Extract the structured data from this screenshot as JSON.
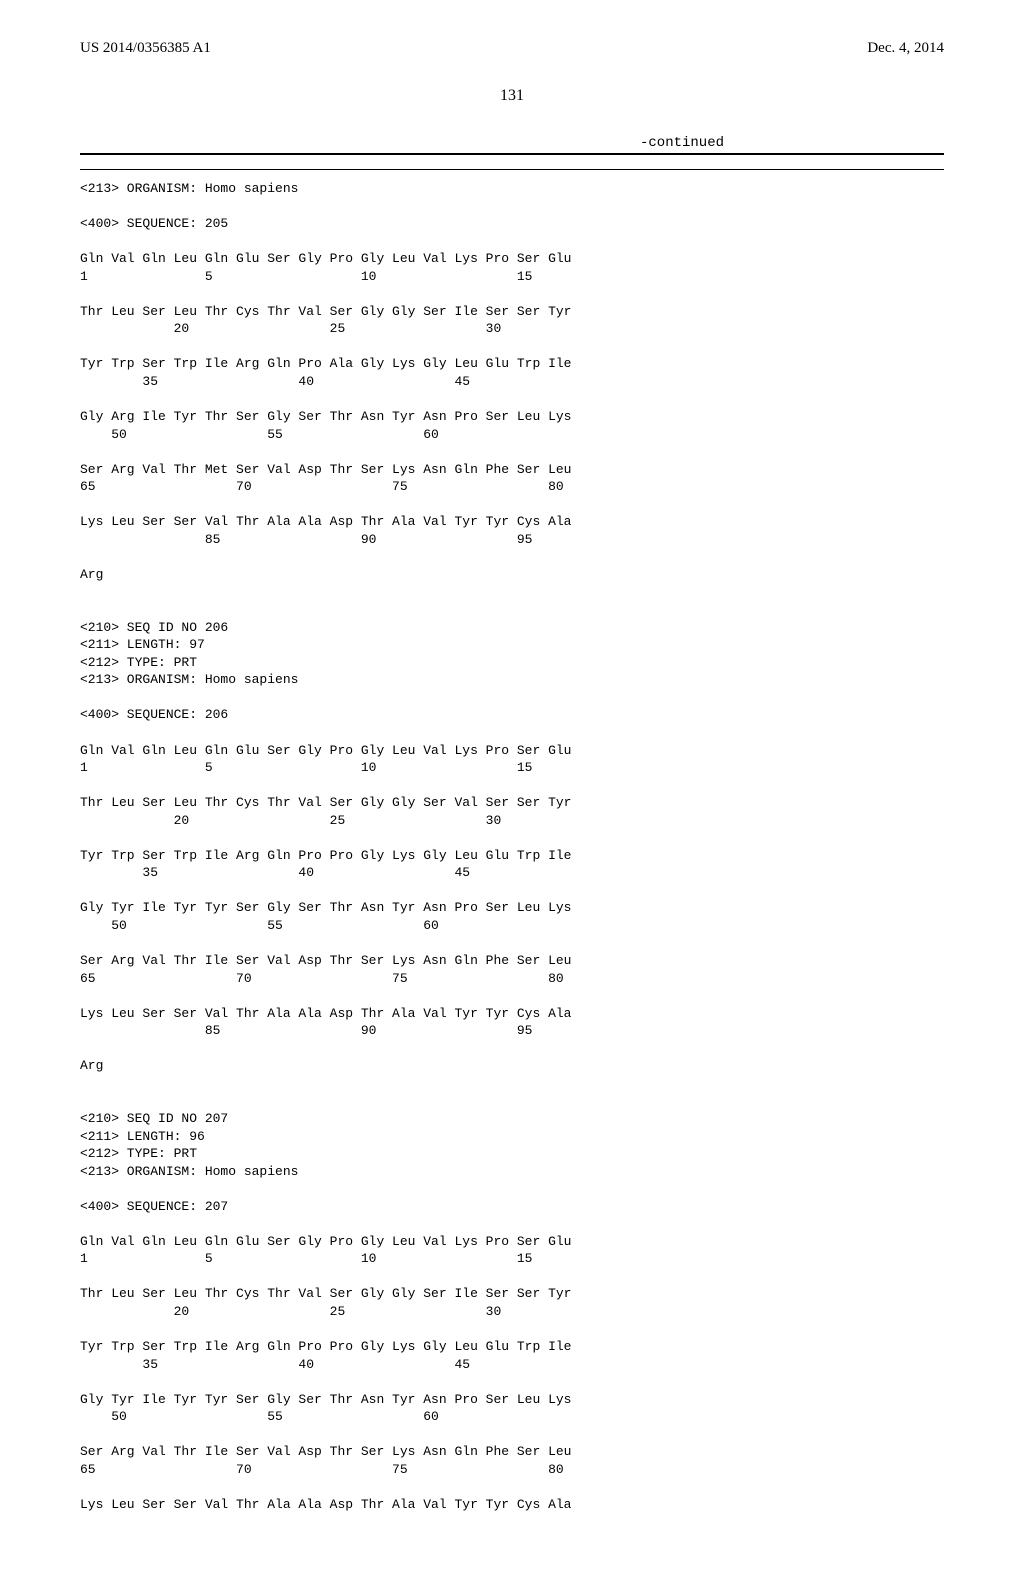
{
  "header": {
    "left": "US 2014/0356385 A1",
    "right": "Dec. 4, 2014"
  },
  "page_number": "131",
  "continued_label": "-continued",
  "sections": [
    {
      "lines": [
        "<213> ORGANISM: Homo sapiens",
        "",
        "<400> SEQUENCE: 205",
        "",
        "Gln Val Gln Leu Gln Glu Ser Gly Pro Gly Leu Val Lys Pro Ser Glu",
        "1               5                   10                  15",
        "",
        "Thr Leu Ser Leu Thr Cys Thr Val Ser Gly Gly Ser Ile Ser Ser Tyr",
        "            20                  25                  30",
        "",
        "Tyr Trp Ser Trp Ile Arg Gln Pro Ala Gly Lys Gly Leu Glu Trp Ile",
        "        35                  40                  45",
        "",
        "Gly Arg Ile Tyr Thr Ser Gly Ser Thr Asn Tyr Asn Pro Ser Leu Lys",
        "    50                  55                  60",
        "",
        "Ser Arg Val Thr Met Ser Val Asp Thr Ser Lys Asn Gln Phe Ser Leu",
        "65                  70                  75                  80",
        "",
        "Lys Leu Ser Ser Val Thr Ala Ala Asp Thr Ala Val Tyr Tyr Cys Ala",
        "                85                  90                  95",
        "",
        "Arg",
        "",
        "",
        "<210> SEQ ID NO 206",
        "<211> LENGTH: 97",
        "<212> TYPE: PRT",
        "<213> ORGANISM: Homo sapiens",
        "",
        "<400> SEQUENCE: 206",
        "",
        "Gln Val Gln Leu Gln Glu Ser Gly Pro Gly Leu Val Lys Pro Ser Glu",
        "1               5                   10                  15",
        "",
        "Thr Leu Ser Leu Thr Cys Thr Val Ser Gly Gly Ser Val Ser Ser Tyr",
        "            20                  25                  30",
        "",
        "Tyr Trp Ser Trp Ile Arg Gln Pro Pro Gly Lys Gly Leu Glu Trp Ile",
        "        35                  40                  45",
        "",
        "Gly Tyr Ile Tyr Tyr Ser Gly Ser Thr Asn Tyr Asn Pro Ser Leu Lys",
        "    50                  55                  60",
        "",
        "Ser Arg Val Thr Ile Ser Val Asp Thr Ser Lys Asn Gln Phe Ser Leu",
        "65                  70                  75                  80",
        "",
        "Lys Leu Ser Ser Val Thr Ala Ala Asp Thr Ala Val Tyr Tyr Cys Ala",
        "                85                  90                  95",
        "",
        "Arg",
        "",
        "",
        "<210> SEQ ID NO 207",
        "<211> LENGTH: 96",
        "<212> TYPE: PRT",
        "<213> ORGANISM: Homo sapiens",
        "",
        "<400> SEQUENCE: 207",
        "",
        "Gln Val Gln Leu Gln Glu Ser Gly Pro Gly Leu Val Lys Pro Ser Glu",
        "1               5                   10                  15",
        "",
        "Thr Leu Ser Leu Thr Cys Thr Val Ser Gly Gly Ser Ile Ser Ser Tyr",
        "            20                  25                  30",
        "",
        "Tyr Trp Ser Trp Ile Arg Gln Pro Pro Gly Lys Gly Leu Glu Trp Ile",
        "        35                  40                  45",
        "",
        "Gly Tyr Ile Tyr Tyr Ser Gly Ser Thr Asn Tyr Asn Pro Ser Leu Lys",
        "    50                  55                  60",
        "",
        "Ser Arg Val Thr Ile Ser Val Asp Thr Ser Lys Asn Gln Phe Ser Leu",
        "65                  70                  75                  80",
        "",
        "Lys Leu Ser Ser Val Thr Ala Ala Asp Thr Ala Val Tyr Tyr Cys Ala"
      ]
    }
  ]
}
